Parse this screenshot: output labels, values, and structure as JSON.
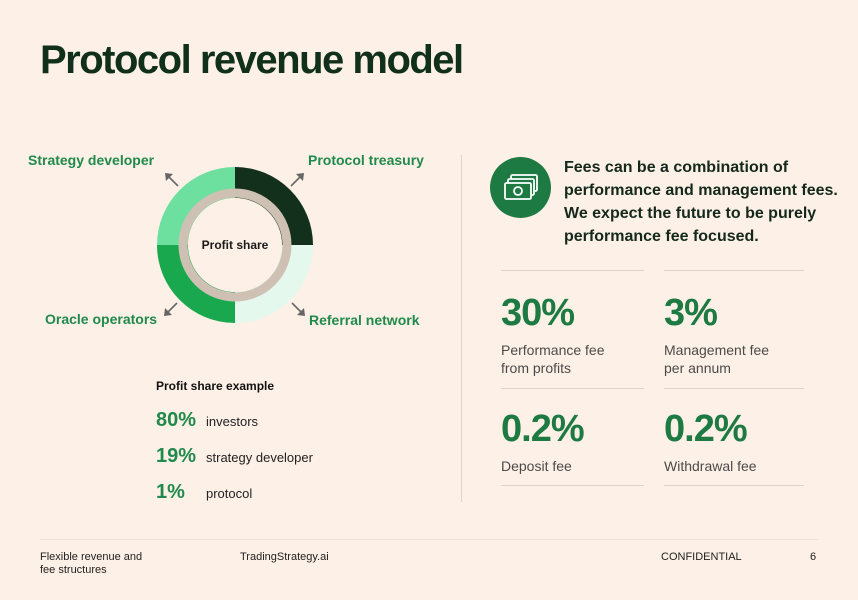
{
  "title": "Protocol revenue model",
  "donut": {
    "center_label": "Profit share",
    "segments": [
      {
        "name": "Protocol treasury",
        "color": "#12301c"
      },
      {
        "name": "Referral network",
        "color": "#e4f8ee"
      },
      {
        "name": "Oracle operators",
        "color": "#1aa84f"
      },
      {
        "name": "Strategy developer",
        "color": "#6ddf9e"
      }
    ],
    "ring_color": "#cfc0b4"
  },
  "example": {
    "title": "Profit share example",
    "rows": [
      {
        "pct": "80%",
        "label": "investors"
      },
      {
        "pct": "19%",
        "label": "strategy developer"
      },
      {
        "pct": "1%",
        "label": "protocol"
      }
    ]
  },
  "fees": {
    "icon": "banknotes-icon",
    "statement": "Fees can be a combination of performance and management fees. We expect the future to be purely performance fee focused.",
    "stats": [
      {
        "value": "30%",
        "label": "Performance fee\nfrom profits"
      },
      {
        "value": "3%",
        "label": "Management fee\nper annum"
      },
      {
        "value": "0.2%",
        "label": "Deposit fee"
      },
      {
        "value": "0.2%",
        "label": "Withdrawal fee"
      }
    ]
  },
  "footer": {
    "left": "Flexible revenue and fee structures",
    "brand": "TradingStrategy.ai",
    "confidential": "CONFIDENTIAL",
    "page": "6"
  },
  "colors": {
    "accent": "#1c7a42",
    "background": "#fdf0e6",
    "heading": "#10301c"
  }
}
